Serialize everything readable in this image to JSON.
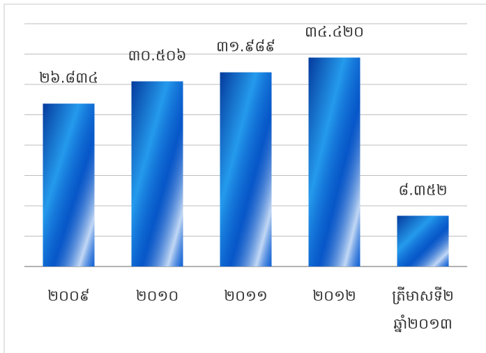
{
  "chart_data": {
    "type": "bar",
    "categories": [
      "២០០៩",
      "២០១០",
      "២០១១",
      "២០១២",
      "ត្រីមាសទី២ ឆ្នាំ២០១៣"
    ],
    "values": [
      26.834,
      30.506,
      31.989,
      34.42,
      8.352
    ],
    "value_labels": [
      "២៦.៨៣៤",
      "៣០.៥០៦",
      "៣១.៩៨៩",
      "៣៤.៤២០",
      "៨.៣៥២"
    ],
    "color": "#0b63d6",
    "ylim": [
      0,
      40
    ],
    "yticks": [
      0,
      5,
      10,
      15,
      20,
      25,
      30,
      35,
      40
    ],
    "grid": true
  }
}
